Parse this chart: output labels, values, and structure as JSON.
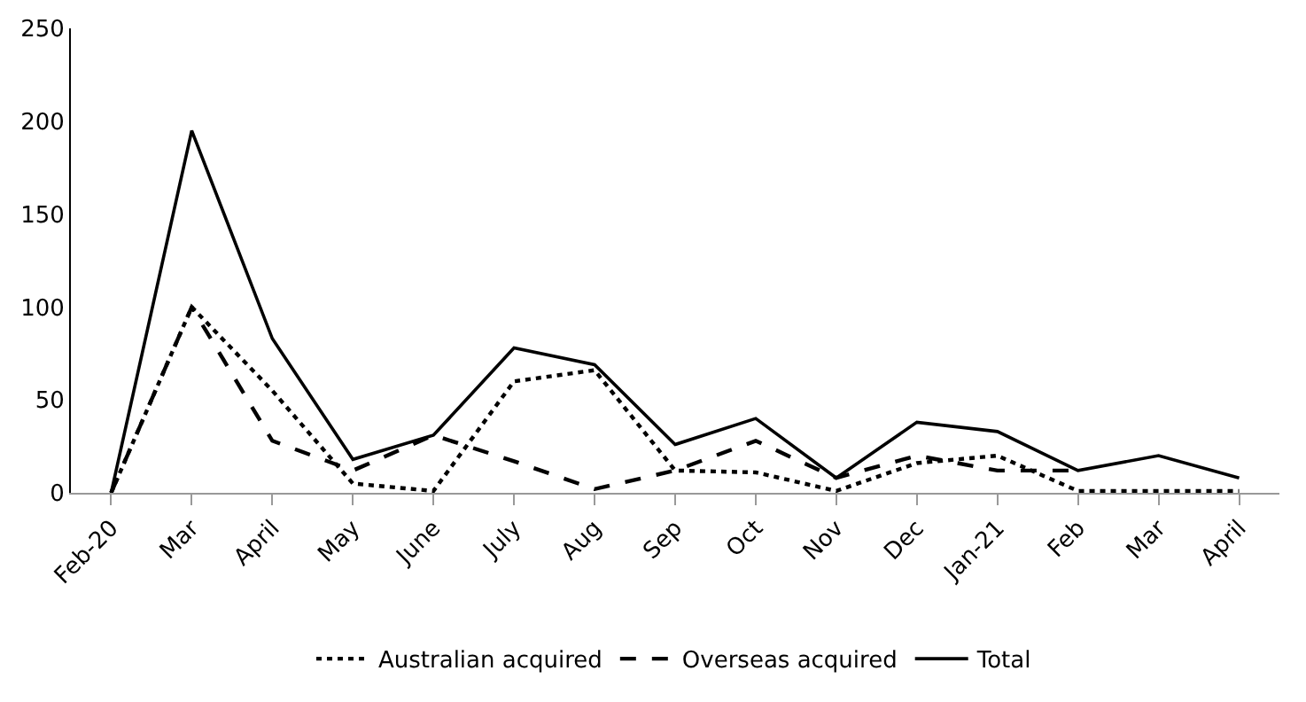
{
  "chart_data": {
    "type": "line",
    "categories": [
      "Feb-20",
      "Mar",
      "April",
      "May",
      "June",
      "July",
      "Aug",
      "Sep",
      "Oct",
      "Nov",
      "Dec",
      "Jan-21",
      "Feb",
      "Mar",
      "April"
    ],
    "series": [
      {
        "name": "Australian acquired",
        "color": "#000000",
        "line_style": "dotted",
        "values": [
          0,
          100,
          55,
          5,
          1,
          60,
          66,
          12,
          11,
          1,
          16,
          20,
          1,
          1,
          1
        ]
      },
      {
        "name": "Overseas acquired",
        "color": "#000000",
        "line_style": "dashed",
        "values": [
          0,
          100,
          28,
          12,
          31,
          17,
          2,
          12,
          28,
          8,
          20,
          12,
          12,
          null,
          null
        ]
      },
      {
        "name": "Total",
        "color": "#000000",
        "line_style": "solid",
        "values": [
          0,
          195,
          83,
          18,
          31,
          78,
          69,
          26,
          40,
          8,
          38,
          33,
          12,
          20,
          8
        ]
      }
    ],
    "ylim": [
      0,
      250
    ],
    "yticks": [
      0,
      50,
      100,
      150,
      200,
      250
    ],
    "legend": "bottom",
    "marker": "none"
  }
}
